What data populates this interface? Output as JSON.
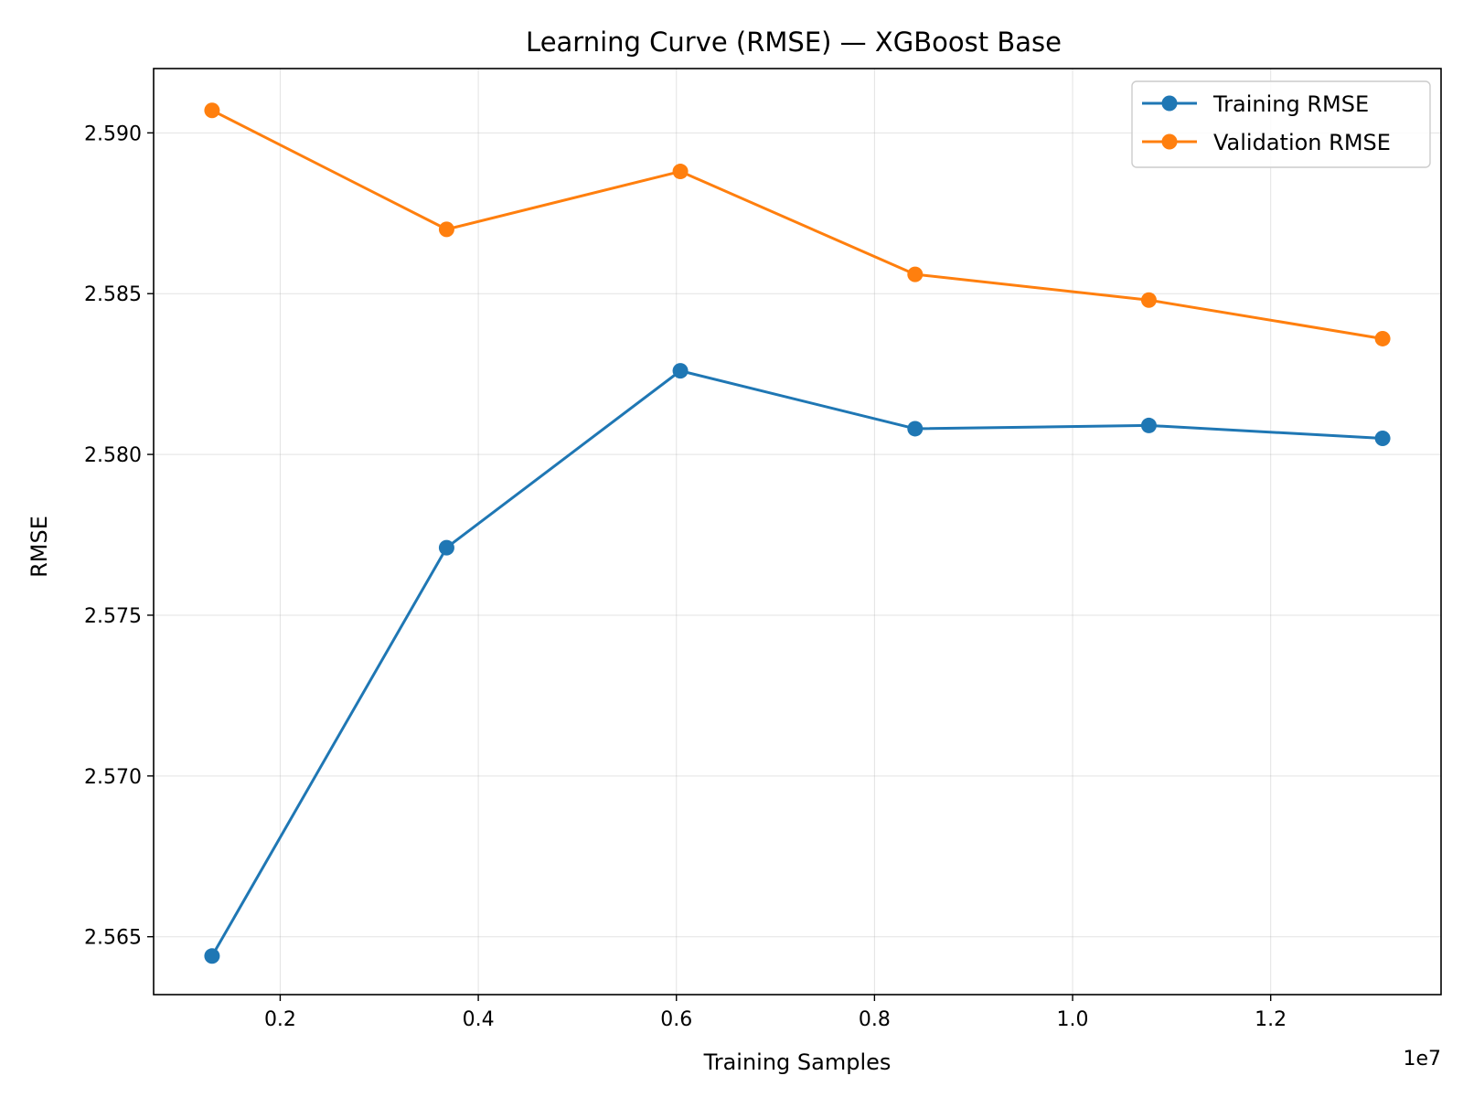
{
  "chart_data": {
    "type": "line",
    "title": "Learning Curve (RMSE) — XGBoost Base",
    "xlabel": "Training Samples",
    "ylabel": "RMSE",
    "x_offset_label": "1e7",
    "x": [
      1312000,
      3680000,
      6040000,
      8410000,
      10770000,
      13130000
    ],
    "series": [
      {
        "name": "Training RMSE",
        "color": "#1f77b4",
        "values": [
          2.5644,
          2.5771,
          2.5826,
          2.5808,
          2.5809,
          2.5805
        ]
      },
      {
        "name": "Validation RMSE",
        "color": "#ff7f0e",
        "values": [
          2.5907,
          2.587,
          2.5888,
          2.5856,
          2.5848,
          2.5836
        ]
      }
    ],
    "xlim": [
      722000,
      13720000
    ],
    "ylim": [
      2.5632,
      2.592
    ],
    "x_ticks": [
      {
        "value": 2000000,
        "label": "0.2"
      },
      {
        "value": 4000000,
        "label": "0.4"
      },
      {
        "value": 6000000,
        "label": "0.6"
      },
      {
        "value": 8000000,
        "label": "0.8"
      },
      {
        "value": 10000000,
        "label": "1.0"
      },
      {
        "value": 12000000,
        "label": "1.2"
      }
    ],
    "y_ticks": [
      {
        "value": 2.565,
        "label": "2.565"
      },
      {
        "value": 2.57,
        "label": "2.570"
      },
      {
        "value": 2.575,
        "label": "2.575"
      },
      {
        "value": 2.58,
        "label": "2.580"
      },
      {
        "value": 2.585,
        "label": "2.585"
      },
      {
        "value": 2.59,
        "label": "2.590"
      }
    ],
    "grid": true,
    "legend_position": "top-right",
    "markers": "circle"
  }
}
